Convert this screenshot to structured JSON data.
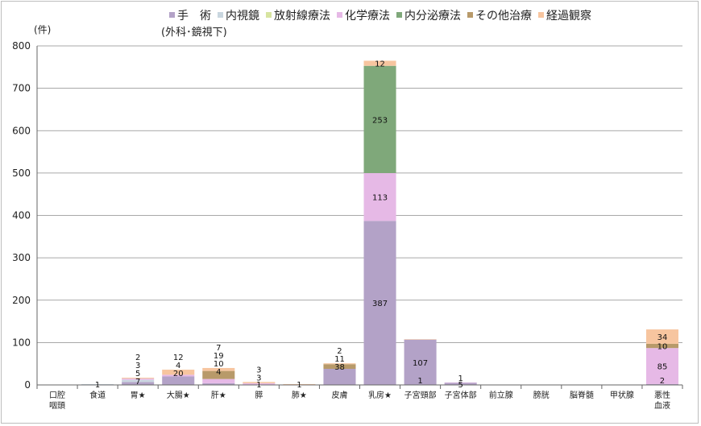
{
  "chart_data": {
    "type": "bar",
    "stacked": true,
    "ylabel": "(件)",
    "ylim": [
      0,
      800
    ],
    "yticks": [
      0,
      100,
      200,
      300,
      400,
      500,
      600,
      700,
      800
    ],
    "grid": true,
    "legend_position": "top",
    "legend_note": "(外科･鏡視下)",
    "categories": [
      [
        "口腔",
        "咽頭"
      ],
      [
        "食道"
      ],
      [
        "胃★"
      ],
      [
        "大腸★"
      ],
      [
        "肝★"
      ],
      [
        "膵"
      ],
      [
        "肺★"
      ],
      [
        "皮膚"
      ],
      [
        "乳房★"
      ],
      [
        "子宮頸部"
      ],
      [
        "子宮体部"
      ],
      [
        "前立腺"
      ],
      [
        "膀胱"
      ],
      [
        "脳脊髄"
      ],
      [
        "甲状腺"
      ],
      [
        "悪性",
        "血液"
      ]
    ],
    "series": [
      {
        "name": "手　術",
        "color": "#b3a2c7",
        "values": [
          0,
          1,
          7,
          20,
          4,
          1,
          1,
          38,
          387,
          107,
          5,
          0,
          0,
          0,
          0,
          2
        ]
      },
      {
        "name": "内視鏡",
        "color": "#c9d6df",
        "values": [
          0,
          1,
          5,
          0,
          0,
          0,
          0,
          0,
          0,
          0,
          0,
          0,
          0,
          0,
          0,
          0
        ]
      },
      {
        "name": "放射線療法",
        "color": "#d7e4a0",
        "values": [
          0,
          0,
          0,
          0,
          0,
          0,
          0,
          0,
          0,
          0,
          0,
          0,
          0,
          0,
          0,
          0
        ]
      },
      {
        "name": "化学療法",
        "color": "#e6b9e6",
        "values": [
          0,
          0,
          3,
          4,
          10,
          3,
          0,
          0,
          113,
          0,
          1,
          0,
          0,
          0,
          0,
          85
        ]
      },
      {
        "name": "内分泌療法",
        "color": "#7fa87a",
        "values": [
          0,
          0,
          0,
          0,
          0,
          0,
          0,
          0,
          253,
          0,
          0,
          0,
          0,
          0,
          0,
          0
        ]
      },
      {
        "name": "その他治療",
        "color": "#b89a6a",
        "values": [
          0,
          0,
          0,
          0,
          19,
          0,
          0,
          11,
          0,
          0,
          0,
          0,
          0,
          0,
          0,
          10
        ]
      },
      {
        "name": "経過観察",
        "color": "#f7c59f",
        "values": [
          0,
          0,
          2,
          12,
          7,
          3,
          1,
          2,
          12,
          1,
          0,
          0,
          0,
          0,
          0,
          34
        ]
      }
    ],
    "data_labels": [
      [],
      [
        "1"
      ],
      [
        "2",
        "3",
        "5",
        "7"
      ],
      [
        "12",
        "4",
        "20"
      ],
      [
        "7",
        "19",
        "10",
        "4"
      ],
      [
        "3",
        "3",
        "1"
      ],
      [
        "1"
      ],
      [
        "2",
        "11",
        "38"
      ],
      [
        "12",
        "253",
        "113",
        "387"
      ],
      [
        "1",
        "107"
      ],
      [
        "1",
        "5"
      ],
      [],
      [],
      [],
      [],
      [
        "34",
        "10",
        "85",
        "2"
      ]
    ]
  }
}
